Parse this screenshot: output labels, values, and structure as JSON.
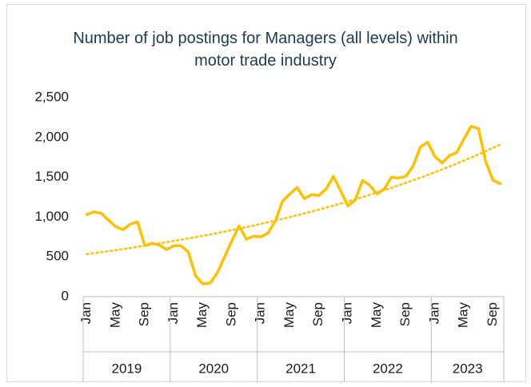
{
  "chart_data": {
    "type": "line",
    "title": "Number of job postings for Managers (all levels) within motor trade industry",
    "categories": [
      "Jan",
      null,
      null,
      null,
      "May",
      null,
      null,
      null,
      "Sep",
      null,
      null,
      null,
      "Jan",
      null,
      null,
      null,
      "May",
      null,
      null,
      null,
      "Sep",
      null,
      null,
      null,
      "Jan",
      null,
      null,
      null,
      "May",
      null,
      null,
      null,
      "Sep",
      null,
      null,
      null,
      "Jan",
      null,
      null,
      null,
      "May",
      null,
      null,
      null,
      "Sep",
      null,
      null,
      null,
      "Jan",
      null,
      null,
      null,
      "May",
      null,
      null,
      null,
      "Sep",
      null
    ],
    "year_groups": [
      "2019",
      "2020",
      "2021",
      "2022",
      "2023"
    ],
    "values": [
      1030,
      1065,
      1045,
      960,
      880,
      840,
      910,
      940,
      640,
      670,
      650,
      590,
      640,
      640,
      560,
      260,
      160,
      170,
      300,
      500,
      700,
      890,
      720,
      760,
      750,
      800,
      950,
      1200,
      1290,
      1370,
      1230,
      1280,
      1270,
      1350,
      1510,
      1330,
      1140,
      1210,
      1460,
      1400,
      1290,
      1350,
      1500,
      1490,
      1510,
      1640,
      1880,
      1940,
      1760,
      1680,
      1770,
      1810,
      1980,
      2140,
      2110,
      1700,
      1460,
      1420
    ],
    "color": "#ffc000",
    "trendline": {
      "type": "exponential",
      "color": "#ffc000"
    },
    "ylim": [
      0,
      2500
    ],
    "yticks": [
      0,
      {
        "value": 500,
        "label": "500"
      },
      {
        "value": 1000,
        "label": "1,000"
      },
      {
        "value": 1500,
        "label": "1,500"
      },
      {
        "value": 2000,
        "label": "2,000"
      },
      {
        "value": 2500,
        "label": "2,500"
      }
    ],
    "grid": false
  }
}
